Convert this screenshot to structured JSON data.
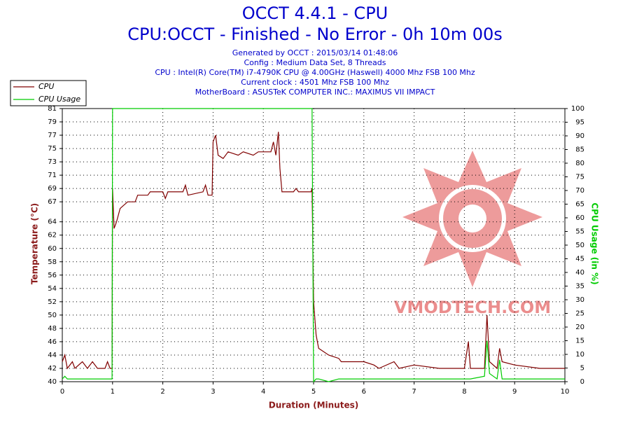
{
  "chart_data": {
    "type": "line",
    "title": "OCCT 4.4.1 - CPU",
    "subtitle": "CPU:OCCT - Finished - No Error - 0h 10m 00s",
    "info": [
      "Generated by OCCT : 2015/03/14 01:48:06",
      "Config : Medium Data Set, 8 Threads",
      "CPU : Intel(R) Core(TM) i7-4790K CPU @ 4.00GHz (Haswell) 4000 Mhz FSB 100 Mhz",
      "Current clock : 4501 Mhz FSB 100 Mhz",
      "MotherBoard : ASUSTeK COMPUTER INC.: MAXIMUS VII IMPACT"
    ],
    "xlabel": "Duration (Minutes)",
    "ylabel": "Temperature (°C)",
    "y2label": "CPU Usage (in %)",
    "watermark": "VMODTECH.COM",
    "grid": true,
    "legend": "top-left",
    "xlim": [
      0,
      10
    ],
    "xticks": [
      0,
      1,
      2,
      3,
      4,
      5,
      6,
      7,
      8,
      9,
      10
    ],
    "ylim": [
      40,
      81
    ],
    "yticks": [
      40,
      42,
      44,
      46,
      48,
      50,
      52,
      54,
      56,
      58,
      60,
      62,
      64,
      67,
      69,
      71,
      73,
      75,
      77,
      79,
      81
    ],
    "y2lim": [
      0,
      100
    ],
    "y2ticks": [
      0,
      5,
      10,
      15,
      20,
      25,
      30,
      35,
      40,
      45,
      50,
      55,
      60,
      65,
      70,
      75,
      80,
      85,
      90,
      95,
      100
    ],
    "x": [
      0,
      0.05,
      0.1,
      0.2,
      0.25,
      0.4,
      0.5,
      0.6,
      0.7,
      0.85,
      0.9,
      0.95,
      0.99,
      1.0,
      1.03,
      1.08,
      1.15,
      1.3,
      1.45,
      1.5,
      1.7,
      1.75,
      2.0,
      2.05,
      2.1,
      2.4,
      2.45,
      2.5,
      2.8,
      2.85,
      2.9,
      2.98,
      3.0,
      3.05,
      3.1,
      3.2,
      3.3,
      3.5,
      3.6,
      3.8,
      3.9,
      4.15,
      4.2,
      4.25,
      4.3,
      4.33,
      4.37,
      4.6,
      4.65,
      4.7,
      4.95,
      4.97,
      5.0,
      5.05,
      5.1,
      5.3,
      5.5,
      5.55,
      6.0,
      6.2,
      6.3,
      6.6,
      6.7,
      7.0,
      7.5,
      8.0,
      8.08,
      8.12,
      8.4,
      8.45,
      8.5,
      8.65,
      8.7,
      8.75,
      9.0,
      9.5,
      10
    ],
    "series": [
      {
        "name": "CPU",
        "color": "#800000",
        "axis": "y",
        "values": [
          43,
          44,
          42,
          43,
          42,
          43,
          42,
          43,
          42,
          42,
          43,
          42,
          42,
          69,
          63,
          64,
          66,
          67,
          67,
          68,
          68,
          68.5,
          68.5,
          67.5,
          68.5,
          68.5,
          69.5,
          68,
          68.5,
          69.5,
          68,
          68,
          76,
          77,
          74,
          73.5,
          74.5,
          74,
          74.5,
          74,
          74.5,
          74.5,
          76,
          74,
          77.5,
          72,
          68.5,
          68.5,
          69,
          68.5,
          68.5,
          69,
          52,
          47,
          45,
          44,
          43.5,
          43,
          43,
          42.5,
          42,
          43,
          42,
          42.5,
          42,
          42,
          46,
          42,
          42,
          50,
          43,
          42,
          45,
          43,
          42.5,
          42,
          42
        ]
      },
      {
        "name": "CPU Usage",
        "color": "#00cc00",
        "axis": "y2",
        "values": [
          1,
          2,
          1,
          1,
          1,
          1,
          1,
          1,
          1,
          1,
          1,
          1,
          1,
          100,
          100,
          100,
          100,
          100,
          100,
          100,
          100,
          100,
          100,
          100,
          100,
          100,
          100,
          100,
          100,
          100,
          100,
          100,
          100,
          100,
          100,
          100,
          100,
          100,
          100,
          100,
          100,
          100,
          100,
          100,
          100,
          100,
          100,
          100,
          100,
          100,
          100,
          100,
          0,
          1,
          1,
          0,
          1,
          1,
          1,
          1,
          1,
          1,
          1,
          1,
          1,
          1,
          1,
          1,
          2,
          15,
          3,
          1,
          8,
          1,
          1,
          1,
          1
        ]
      }
    ]
  }
}
